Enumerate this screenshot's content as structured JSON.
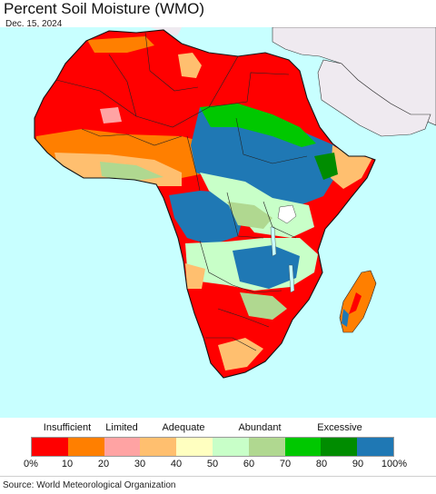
{
  "header": {
    "title": "Percent Soil Moisture (WMO)",
    "date": "Dec. 15, 2024"
  },
  "map": {
    "region": "Africa",
    "colors": {
      "ocean": "#c8ffff",
      "non_data_land": "#efeaf0",
      "border": "#222222"
    }
  },
  "legend": {
    "categories": [
      {
        "label": "Insufficient",
        "center_value": 10
      },
      {
        "label": "Limited",
        "center_value": 25
      },
      {
        "label": "Adequate",
        "center_value": 42
      },
      {
        "label": "Abundant",
        "center_value": 63
      },
      {
        "label": "Excessive",
        "center_value": 85
      }
    ],
    "bins": [
      {
        "from": 0,
        "to": 10,
        "color": "#ff0000"
      },
      {
        "from": 10,
        "to": 20,
        "color": "#ff7f00"
      },
      {
        "from": 20,
        "to": 30,
        "color": "#ffa3a3"
      },
      {
        "from": 30,
        "to": 40,
        "color": "#ffbf6f"
      },
      {
        "from": 40,
        "to": 50,
        "color": "#ffffc0"
      },
      {
        "from": 50,
        "to": 60,
        "color": "#c8ffc8"
      },
      {
        "from": 60,
        "to": 70,
        "color": "#b0d890"
      },
      {
        "from": 70,
        "to": 80,
        "color": "#00c800"
      },
      {
        "from": 80,
        "to": 90,
        "color": "#008c00"
      },
      {
        "from": 90,
        "to": 100,
        "color": "#1f78b4"
      }
    ],
    "ticks": [
      "0%",
      "10",
      "20",
      "30",
      "40",
      "50",
      "60",
      "70",
      "80",
      "90",
      "100%"
    ]
  },
  "footer": {
    "source": "Source: World Meteorological Organization"
  }
}
